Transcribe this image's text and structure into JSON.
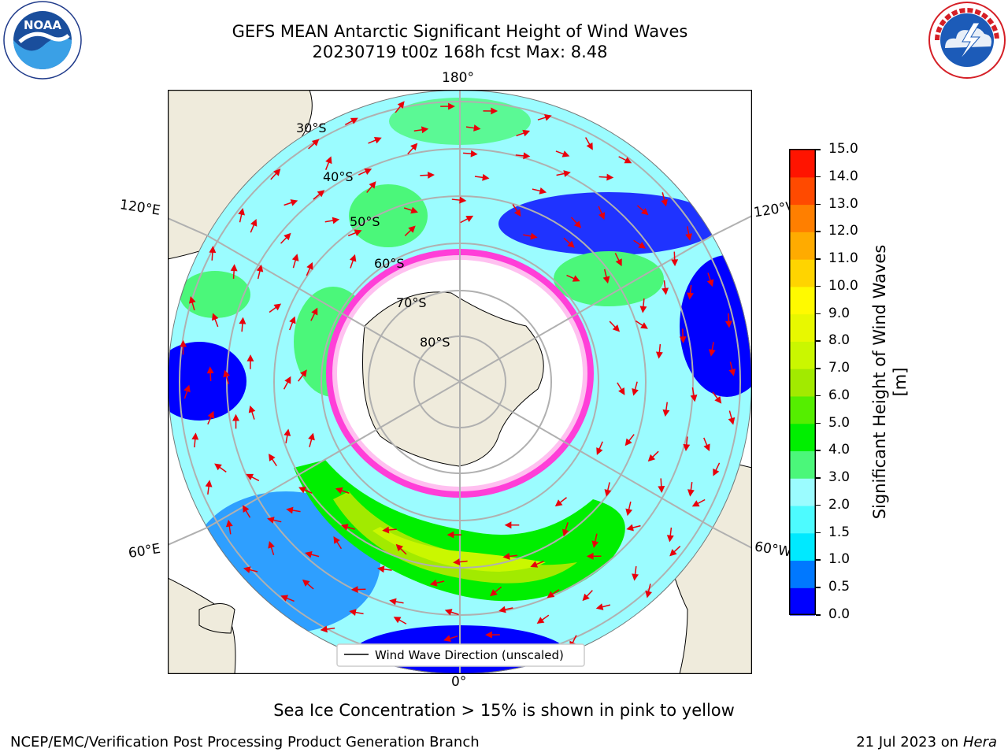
{
  "title_line1": "GEFS MEAN Antarctic Significant Height of Wind Waves",
  "title_line2": "20230719 t00z 168h fcst   Max: 8.48",
  "map": {
    "lon_labels": {
      "top": "180°",
      "bottom": "0°",
      "left_upper": "120°E",
      "right_upper": "120°W",
      "left_lower": "60°E",
      "right_lower": "60°W"
    },
    "lat_labels": [
      "30°S",
      "40°S",
      "50°S",
      "60°S",
      "70°S",
      "80°S"
    ],
    "legend_label": "Wind Wave Direction (unscaled)",
    "arrow_color": "#e8000b",
    "land_color": "#efebdc"
  },
  "colorbar": {
    "label": "Significant Height of Wind Waves [m]",
    "ticks": [
      "0.0",
      "0.5",
      "1.0",
      "1.5",
      "2.0",
      "3.0",
      "4.0",
      "5.0",
      "6.0",
      "7.0",
      "8.0",
      "9.0",
      "10.0",
      "11.0",
      "12.0",
      "13.0",
      "14.0",
      "15.0"
    ],
    "colors": [
      "#0000ff",
      "#0078ff",
      "#00e9ff",
      "#4dfbff",
      "#9bfcff",
      "#4bf77a",
      "#00ef00",
      "#55ee00",
      "#a2ea00",
      "#caf700",
      "#e8f800",
      "#fffa00",
      "#ffd400",
      "#ffab00",
      "#ff7f00",
      "#ff4a00",
      "#ff1400"
    ]
  },
  "footnote": "Sea Ice Concentration > 15% is shown in pink to yellow",
  "credit_left": "NCEP/EMC/Verification Post Processing Product Generation Branch",
  "credit_right_date": "21 Jul 2023 on",
  "credit_right_host": "Hera",
  "logos": {
    "noaa_text": "NOAA",
    "nws_text": "NATIONAL WEATHER SERVICE"
  }
}
